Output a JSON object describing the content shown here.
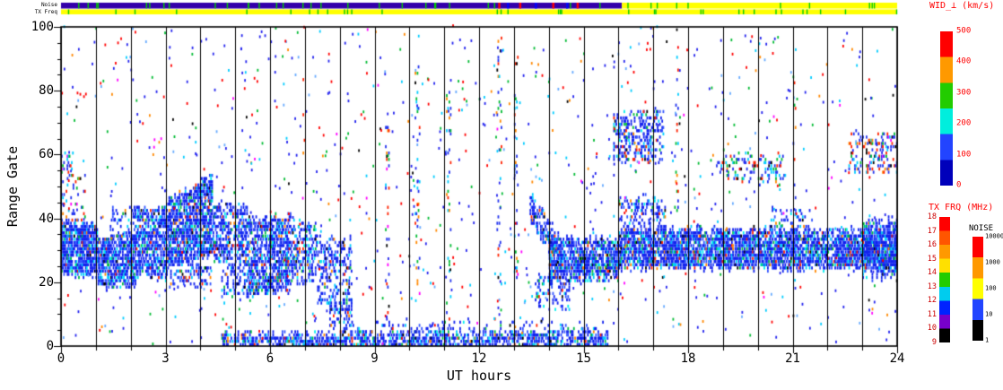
{
  "chart_data": {
    "type": "heatmap",
    "description": "SuperDARN-style range-time plot of perpendicular spectral width: dense blue echo bands near range gates 20-40 (00-08 UT, rising to gate 53 near 04 UT) and gates 25-36 (14-24 UT), near-range band at gates 0-4 (05-16 UT), elevated patches at gates 58-73 (16-17 UT), 52-60 (19-21 UT), 55-66 (23-24 UT), sporadic multicolour scatter everywhere, black vertical gridline each UT hour",
    "xlabel": "UT hours",
    "ylabel": "Range Gate",
    "xlim": [
      0,
      24
    ],
    "ylim": [
      0,
      100
    ],
    "xticks": [
      0,
      3,
      6,
      9,
      12,
      15,
      18,
      21,
      24
    ],
    "yticks": [
      0,
      20,
      40,
      60,
      80,
      100
    ],
    "x_minor_tick_every": 1,
    "y_minor_tick_every": 5,
    "vertical_gridlines_every_hour": true,
    "seed": 424242,
    "palettes": {
      "band": [
        [
          "#1122ee",
          0.6
        ],
        [
          "#3355ff",
          0.15
        ],
        [
          "#00ccff",
          0.08
        ],
        [
          "#00eeee",
          0.05
        ],
        [
          "#00bb44",
          0.05
        ],
        [
          "#ff2200",
          0.03
        ],
        [
          "#ff8800",
          0.02
        ],
        [
          "#000000",
          0.02
        ]
      ],
      "mixed": [
        [
          "#2233ee",
          0.4
        ],
        [
          "#ff2200",
          0.2
        ],
        [
          "#00ccff",
          0.15
        ],
        [
          "#00bb33",
          0.12
        ],
        [
          "#ff8800",
          0.06
        ],
        [
          "#000000",
          0.04
        ],
        [
          "#ff00ff",
          0.03
        ]
      ]
    },
    "dense_regions": [
      {
        "t0": 0.0,
        "t1": 1.05,
        "g0": 23,
        "g1": 38,
        "d": 0.8
      },
      {
        "t0": 0.0,
        "t1": 0.7,
        "g0": 38,
        "g1": 54,
        "d": 0.15,
        "p": "mixed"
      },
      {
        "t0": 0.0,
        "t1": 0.35,
        "g0": 54,
        "g1": 60,
        "d": 0.3,
        "p": "mixed"
      },
      {
        "t0": 1.05,
        "t1": 2.15,
        "g0": 19,
        "g1": 34,
        "d": 0.7
      },
      {
        "t0": 1.4,
        "t1": 2.15,
        "g0": 34,
        "g1": 43,
        "d": 0.22
      },
      {
        "t0": 2.15,
        "t1": 3.05,
        "g0": 22,
        "g1": 43,
        "d": 0.55
      },
      {
        "t0": 3.05,
        "t1": 4.35,
        "g0": 25,
        "g1": 45,
        "g0b": 29,
        "g1b": 53,
        "d": 0.7
      },
      {
        "t0": 3.1,
        "t1": 4.3,
        "g0": 19,
        "g1": 25,
        "d": 0.3
      },
      {
        "t0": 4.35,
        "t1": 5.35,
        "g0": 27,
        "g1": 44,
        "d": 0.5
      },
      {
        "t0": 4.6,
        "t1": 5.35,
        "g0": 15,
        "g1": 26,
        "d": 0.25
      },
      {
        "t0": 5.35,
        "t1": 6.6,
        "g0": 17,
        "g1": 40,
        "d": 0.6
      },
      {
        "t0": 6.6,
        "t1": 7.35,
        "g0": 20,
        "g1": 38,
        "d": 0.42
      },
      {
        "t0": 7.35,
        "t1": 8.35,
        "g0": 14,
        "g1": 34,
        "d": 0.3
      },
      {
        "t0": 7.7,
        "t1": 8.35,
        "g0": 7,
        "g1": 14,
        "d": 0.5
      },
      {
        "t0": 4.6,
        "t1": 15.7,
        "g0": 0,
        "g1": 3.5,
        "d": 0.6
      },
      {
        "t0": 8.0,
        "t1": 15.6,
        "g0": 3.5,
        "g1": 7,
        "d": 0.15
      },
      {
        "t0": 13.45,
        "t1": 14.35,
        "g0": 40,
        "g1": 48,
        "g0b": 25,
        "g1b": 33,
        "d": 0.55
      },
      {
        "t0": 13.6,
        "t1": 14.6,
        "g0": 12,
        "g1": 22,
        "d": 0.25
      },
      {
        "t0": 14.0,
        "t1": 16.0,
        "g0": 21,
        "g1": 33,
        "d": 0.7
      },
      {
        "t0": 16.0,
        "t1": 24.0,
        "g0": 25,
        "g1": 36,
        "d": 0.72
      },
      {
        "t0": 16.0,
        "t1": 17.35,
        "g0": 36,
        "g1": 46,
        "d": 0.28
      },
      {
        "t0": 15.85,
        "t1": 17.3,
        "g0": 58,
        "g1": 73,
        "d": 0.32
      },
      {
        "t0": 15.9,
        "t1": 17.2,
        "g0": 58,
        "g1": 73,
        "d": 0.08,
        "p": "mixed"
      },
      {
        "t0": 18.8,
        "t1": 20.8,
        "g0": 52,
        "g1": 60,
        "d": 0.22,
        "p": "mixed"
      },
      {
        "t0": 22.6,
        "t1": 24.0,
        "g0": 55,
        "g1": 66,
        "d": 0.28,
        "p": "mixed"
      },
      {
        "t0": 23.0,
        "t1": 24.0,
        "g0": 22,
        "g1": 39,
        "d": 0.45
      },
      {
        "t0": 20.3,
        "t1": 21.6,
        "g0": 36,
        "g1": 43,
        "d": 0.18
      },
      {
        "t0": 6.9,
        "t1": 7.0,
        "g0": 40,
        "g1": 85,
        "d": 0.08,
        "p": "mixed"
      },
      {
        "t0": 9.3,
        "t1": 9.42,
        "g0": 10,
        "g1": 75,
        "d": 0.1,
        "p": "mixed"
      },
      {
        "t0": 10.15,
        "t1": 10.3,
        "g0": 15,
        "g1": 90,
        "d": 0.1,
        "p": "mixed"
      },
      {
        "t0": 11.05,
        "t1": 11.2,
        "g0": 5,
        "g1": 80,
        "d": 0.09,
        "p": "mixed"
      },
      {
        "t0": 12.5,
        "t1": 12.65,
        "g0": 15,
        "g1": 95,
        "d": 0.09,
        "p": "mixed"
      },
      {
        "t0": 13.0,
        "t1": 13.12,
        "g0": 20,
        "g1": 90,
        "d": 0.08,
        "p": "mixed"
      },
      {
        "t0": 17.6,
        "t1": 17.72,
        "g0": 40,
        "g1": 90,
        "d": 0.08,
        "p": "mixed"
      },
      {
        "t0": 21.0,
        "t1": 21.12,
        "g0": 40,
        "g1": 85,
        "d": 0.07,
        "p": "mixed"
      }
    ],
    "sparse_scatter": {
      "count": 1000,
      "colors": [
        [
          "#2222ee",
          0.42
        ],
        [
          "#ff0000",
          0.18
        ],
        [
          "#00ccff",
          0.12
        ],
        [
          "#00bb33",
          0.1
        ],
        [
          "#66aaff",
          0.08
        ],
        [
          "#ff8800",
          0.05
        ],
        [
          "#000000",
          0.03
        ],
        [
          "#ff00ff",
          0.02
        ]
      ]
    }
  },
  "strips": {
    "rows": [
      {
        "label": "Noise",
        "segments": [
          {
            "t0": 0,
            "t1": 16.1,
            "color": "#3300aa"
          },
          {
            "t0": 16.1,
            "t1": 24,
            "color": "#ffff00"
          }
        ],
        "tick_color": "#00cc00",
        "tick_count": 40,
        "marks": [
          {
            "t": 12.55,
            "color": "#ff0000"
          },
          {
            "t": 12.8,
            "color": "#0000ff"
          },
          {
            "t": 13.15,
            "color": "#ff0000"
          },
          {
            "t": 13.6,
            "color": "#0000ff"
          },
          {
            "t": 14.1,
            "color": "#ff0000"
          },
          {
            "t": 14.5,
            "color": "#0000ff"
          },
          {
            "t": 14.8,
            "color": "#ff0000"
          }
        ]
      },
      {
        "label": "TX Freq",
        "segments": [
          {
            "t0": 0,
            "t1": 24,
            "color": "#ffff00"
          }
        ],
        "tick_color": "#00cc00",
        "tick_count": 34,
        "marks": []
      }
    ]
  },
  "colorbars": [
    {
      "id": "wid",
      "title": "WID_⊥ (km/s)",
      "title_color": "#ff0000",
      "label_color": "#ff0000",
      "ticks": [
        "500",
        "400",
        "300",
        "200",
        "100",
        "0"
      ],
      "colors": [
        "#ff0000",
        "#ff9900",
        "#22cc00",
        "#00eedd",
        "#2244ff",
        "#0000bb"
      ]
    },
    {
      "id": "txfrq",
      "title": "TX FRQ (MHz)",
      "title_color": "#ff0000",
      "label_color": "#cc0000",
      "ticks": [
        "18",
        "17",
        "16",
        "15",
        "14",
        "13",
        "12",
        "11",
        "10",
        "9"
      ],
      "colors": [
        "#ff0000",
        "#ff5500",
        "#ff9900",
        "#ffe000",
        "#22cc00",
        "#00ccee",
        "#0022ff",
        "#7700cc",
        "#000000"
      ]
    },
    {
      "id": "noise",
      "title": "NOISE",
      "title_color": "#000000",
      "label_color": "#000000",
      "ticks": [
        "10000",
        "1000",
        "100",
        "10",
        "1"
      ],
      "colors": [
        "#ff0000",
        "#ff9900",
        "#ffff00",
        "#2244ff",
        "#000000"
      ]
    }
  ]
}
